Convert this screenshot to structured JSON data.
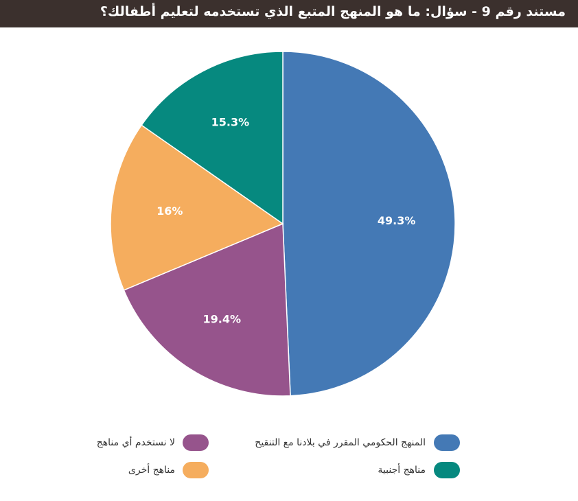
{
  "chart_data": {
    "type": "pie",
    "title": "مستند رقم 9 - سؤال: ما هو المنهج المتبع الذي تستخدمه لتعليم أطفالك؟",
    "categories": [
      "المنهج الحكومي المقرر في بلادنا مع التنقيح",
      "لا نستخدم أي مناهج",
      "مناهج أخرى",
      "مناهج أجنبية"
    ],
    "values": [
      49.3,
      19.4,
      16,
      15.3
    ],
    "value_labels": [
      "49.3%",
      "19.4%",
      "16%",
      "15.3%"
    ],
    "colors": [
      "#4479b5",
      "#96548c",
      "#f5ad5e",
      "#06897f"
    ]
  }
}
